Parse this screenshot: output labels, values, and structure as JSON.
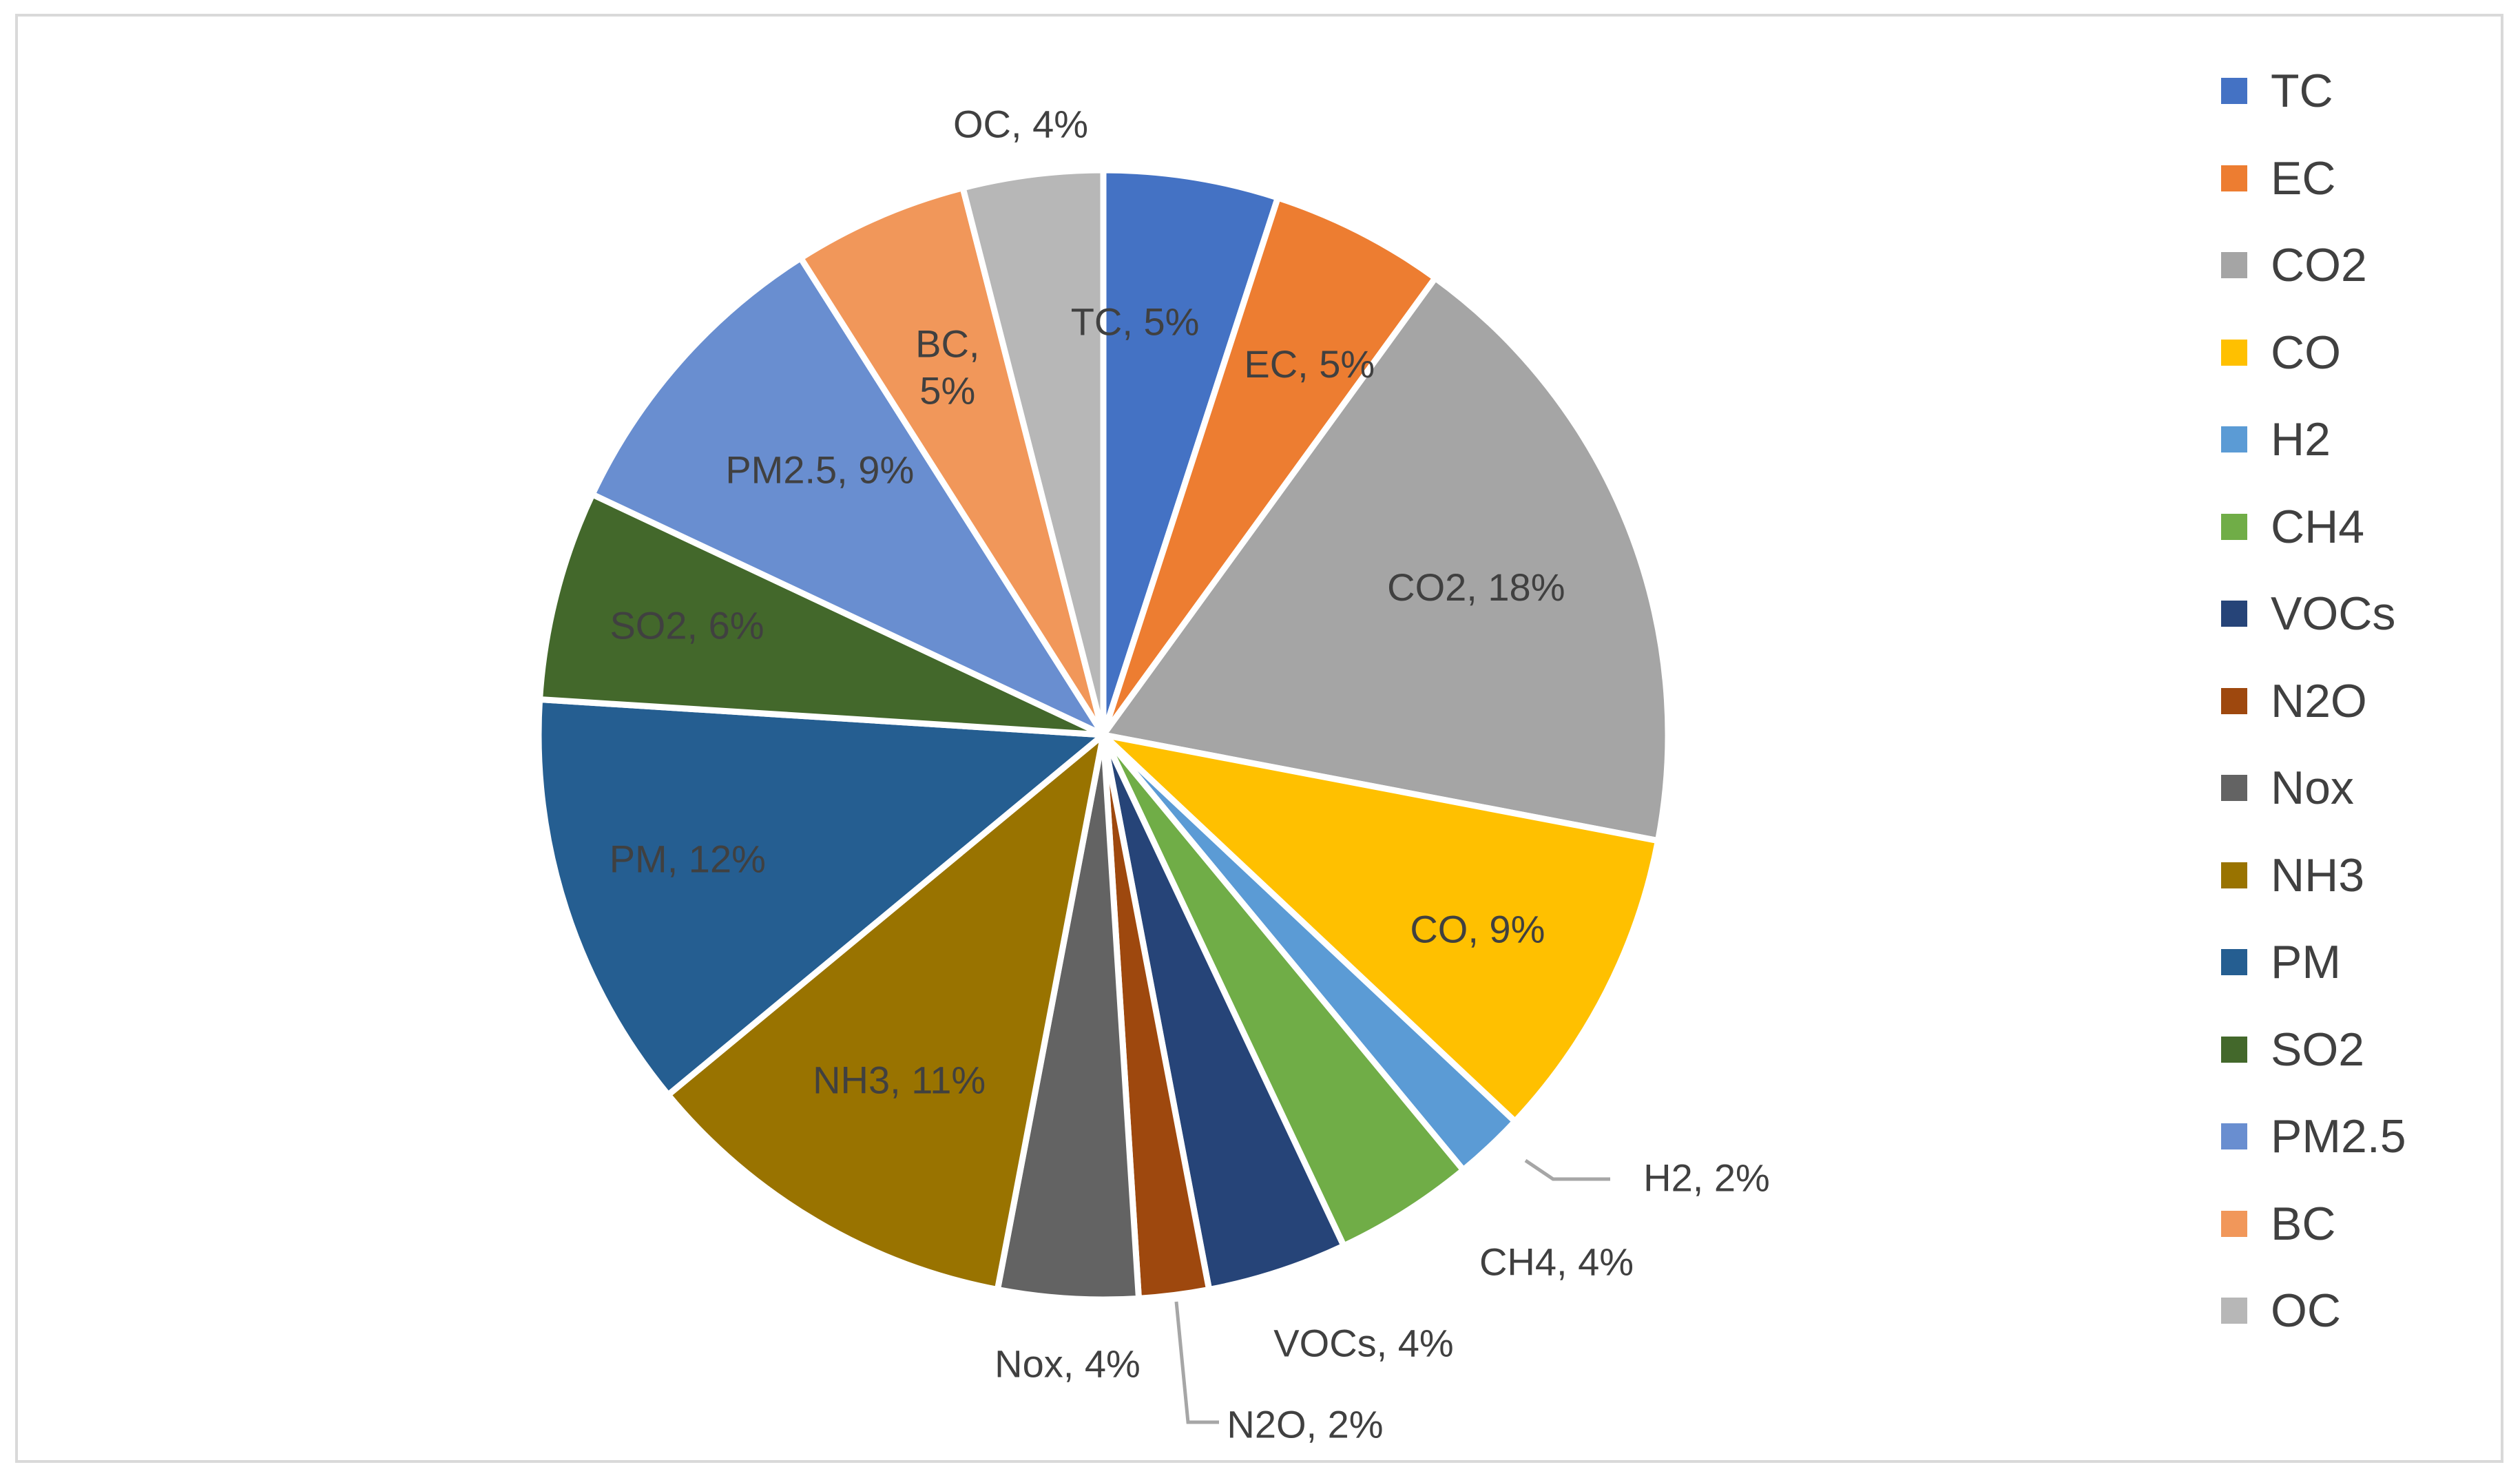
{
  "chart_data": {
    "type": "pie",
    "categories": [
      "TC",
      "EC",
      "CO2",
      "CO",
      "H2",
      "CH4",
      "VOCs",
      "N2O",
      "Nox",
      "NH3",
      "PM",
      "SO2",
      "PM2.5",
      "BC",
      "OC"
    ],
    "values": [
      5,
      5,
      18,
      9,
      2,
      4,
      4,
      2,
      4,
      11,
      12,
      6,
      9,
      5,
      4
    ],
    "value_unit": "%",
    "colors": [
      "#4472C4",
      "#ED7D31",
      "#A5A5A5",
      "#FFC000",
      "#5B9BD5",
      "#70AD47",
      "#264478",
      "#9E480E",
      "#636363",
      "#997300",
      "#255E91",
      "#43682B",
      "#698ED0",
      "#F1975A",
      "#B7B7B7"
    ],
    "data_labels": [
      "TC, 5%",
      "EC, 5%",
      "CO2, 18%",
      "CO, 9%",
      "H2, 2%",
      "CH4, 4%",
      "VOCs, 4%",
      "N2O, 2%",
      "Nox, 4%",
      "NH3, 11%",
      "PM, 12%",
      "SO2, 6%",
      "PM2.5, 9%",
      "BC, 5%",
      "OC, 4%"
    ],
    "legend_position": "right",
    "start_angle_deg": 0,
    "direction": "clockwise"
  }
}
